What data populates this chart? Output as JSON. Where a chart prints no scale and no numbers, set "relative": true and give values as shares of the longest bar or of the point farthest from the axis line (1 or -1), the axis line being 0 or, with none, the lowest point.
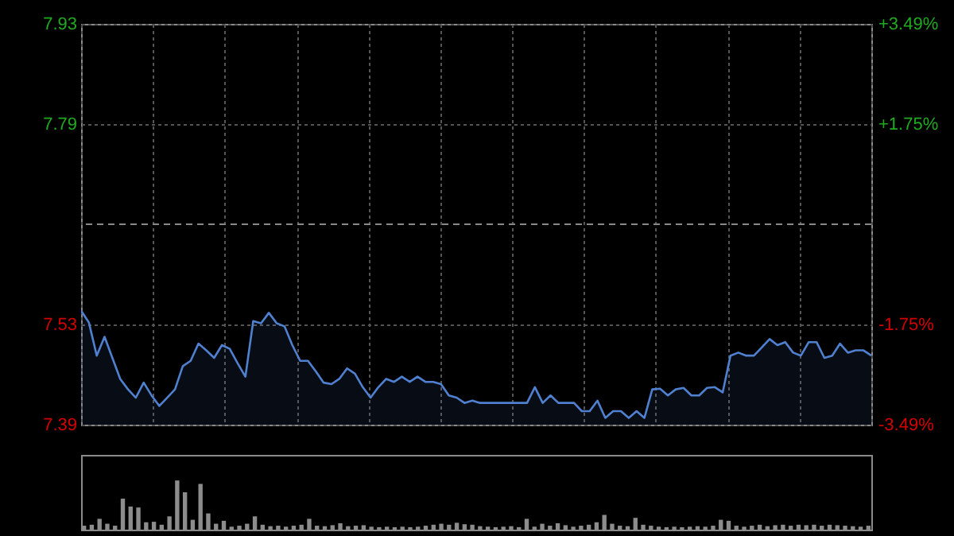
{
  "chart_data": [
    {
      "type": "area",
      "color": "#4f81d0",
      "categories": [
        null,
        null,
        null,
        null,
        null,
        null,
        null,
        null,
        null,
        null,
        null,
        null,
        null,
        null,
        null,
        null,
        null,
        null,
        null,
        null,
        null,
        null,
        null,
        null,
        null,
        null,
        null,
        null,
        null,
        null,
        null,
        null,
        null,
        null,
        null,
        null,
        null,
        null,
        null,
        null,
        null,
        null,
        null,
        null,
        null,
        null,
        null,
        null,
        null,
        null,
        null,
        null,
        null,
        null,
        null,
        null,
        null,
        null,
        null,
        null,
        null,
        null,
        null,
        null,
        null,
        null,
        null,
        null,
        null,
        null,
        null,
        null,
        null,
        null,
        null,
        null,
        null,
        null,
        null,
        null,
        null,
        null,
        null,
        null,
        null,
        null,
        null,
        null,
        null,
        null,
        null,
        null,
        null,
        null,
        null,
        null,
        null,
        null,
        null,
        null,
        null,
        null
      ],
      "values": [
        7.545,
        7.529,
        7.485,
        7.51,
        7.482,
        7.454,
        7.44,
        7.429,
        7.449,
        7.432,
        7.418,
        7.429,
        7.44,
        7.471,
        7.478,
        7.501,
        7.492,
        7.482,
        7.499,
        7.494,
        7.475,
        7.457,
        7.531,
        7.528,
        7.542,
        7.528,
        7.524,
        7.499,
        7.478,
        7.478,
        7.464,
        7.449,
        7.447,
        7.454,
        7.468,
        7.461,
        7.443,
        7.429,
        7.443,
        7.454,
        7.45,
        7.457,
        7.45,
        7.457,
        7.45,
        7.45,
        7.447,
        7.432,
        7.429,
        7.422,
        7.425,
        7.422,
        7.422,
        7.422,
        7.422,
        7.422,
        7.422,
        7.422,
        7.443,
        7.422,
        7.432,
        7.422,
        7.422,
        7.422,
        7.411,
        7.411,
        7.425,
        7.402,
        7.411,
        7.411,
        7.402,
        7.411,
        7.402,
        7.44,
        7.441,
        7.432,
        7.44,
        7.442,
        7.432,
        7.432,
        7.442,
        7.443,
        7.436,
        7.485,
        7.489,
        7.485,
        7.485,
        7.496,
        7.507,
        7.499,
        7.503,
        7.489,
        7.485,
        7.503,
        7.503,
        7.482,
        7.485,
        7.501,
        7.489,
        7.492,
        7.492,
        7.485
      ],
      "ylim": [
        7.393,
        7.927
      ],
      "yticks": [
        {
          "value": 7.393,
          "label": "7.39"
        },
        {
          "value": 7.527,
          "label": "7.53"
        },
        {
          "value": 7.793,
          "label": "7.79"
        },
        {
          "value": 7.927,
          "label": "7.93"
        }
      ],
      "y2lim": [
        -3.49,
        3.49
      ],
      "y2ticks": [
        {
          "value": -3.49,
          "label": "-3.49%"
        },
        {
          "value": -1.75,
          "label": "-1.75%"
        },
        {
          "value": 1.75,
          "label": "+1.75%"
        },
        {
          "value": 3.49,
          "label": "+3.49%"
        }
      ],
      "ref_lines": [
        {
          "axis": "y",
          "value": 7.66,
          "line_style": "dashed",
          "color": "#888888"
        }
      ],
      "grid": true
    },
    {
      "type": "bar",
      "relative": true,
      "color": "#8c8c8c",
      "categories": [
        null,
        null,
        null,
        null,
        null,
        null,
        null,
        null,
        null,
        null,
        null,
        null,
        null,
        null,
        null,
        null,
        null,
        null,
        null,
        null,
        null,
        null,
        null,
        null,
        null,
        null,
        null,
        null,
        null,
        null,
        null,
        null,
        null,
        null,
        null,
        null,
        null,
        null,
        null,
        null,
        null,
        null,
        null,
        null,
        null,
        null,
        null,
        null,
        null,
        null,
        null,
        null,
        null,
        null,
        null,
        null,
        null,
        null,
        null,
        null,
        null,
        null,
        null,
        null,
        null,
        null,
        null,
        null,
        null,
        null,
        null,
        null,
        null,
        null,
        null,
        null,
        null,
        null,
        null,
        null,
        null,
        null,
        null,
        null,
        null,
        null,
        null,
        null,
        null,
        null,
        null,
        null,
        null,
        null,
        null,
        null,
        null,
        null,
        null,
        null,
        null,
        null
      ],
      "values": [
        0.08,
        0.1,
        0.22,
        0.12,
        0.08,
        0.63,
        0.47,
        0.45,
        0.15,
        0.16,
        0.1,
        0.27,
        1,
        0.76,
        0.2,
        0.93,
        0.33,
        0.12,
        0.18,
        0.06,
        0.08,
        0.12,
        0.27,
        0.1,
        0.07,
        0.08,
        0.06,
        0.08,
        0.1,
        0.22,
        0.08,
        0.07,
        0.09,
        0.13,
        0.07,
        0.08,
        0.09,
        0.06,
        0.05,
        0.06,
        0.05,
        0.06,
        0.05,
        0.06,
        0.08,
        0.1,
        0.12,
        0.1,
        0.14,
        0.11,
        0.1,
        0.07,
        0.06,
        0.05,
        0.06,
        0.07,
        0.05,
        0.22,
        0.06,
        0.12,
        0.08,
        0.13,
        0.09,
        0.06,
        0.08,
        0.1,
        0.15,
        0.3,
        0.12,
        0.08,
        0.07,
        0.24,
        0.1,
        0.08,
        0.06,
        0.05,
        0.06,
        0.05,
        0.06,
        0.07,
        0.06,
        0.08,
        0.2,
        0.18,
        0.08,
        0.06,
        0.08,
        0.1,
        0.07,
        0.09,
        0.1,
        0.08,
        0.1,
        0.09,
        0.1,
        0.08,
        0.1,
        0.09,
        0.08,
        0.07,
        0.06,
        0.08
      ]
    }
  ]
}
